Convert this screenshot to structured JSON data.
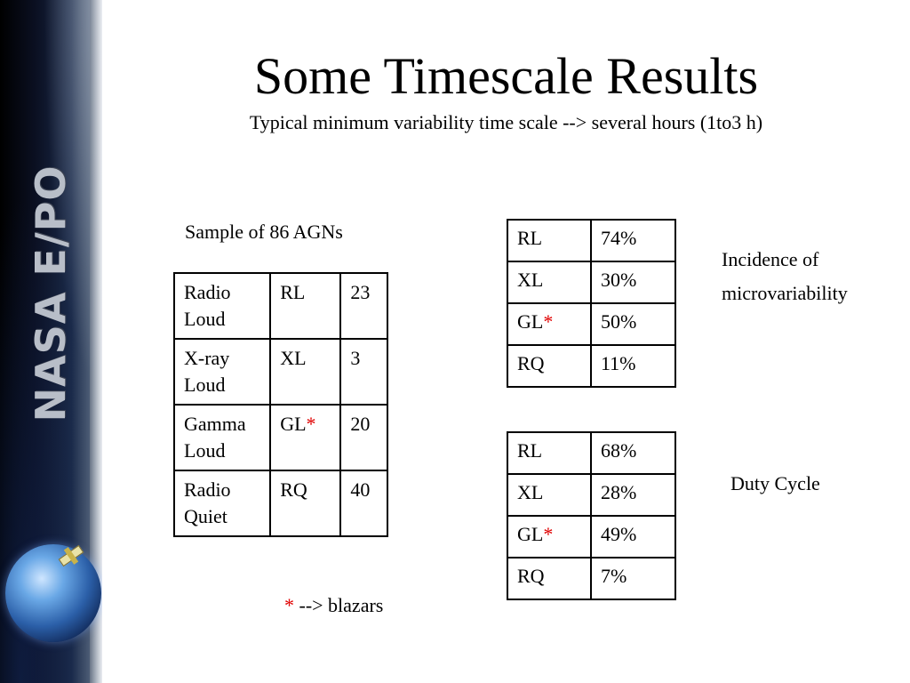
{
  "sidebar": {
    "logo_text": "NASA E/PO"
  },
  "title": "Some Timescale Results",
  "subtitle": "Typical minimum variability time scale --> several hours (1to3 h)",
  "sample_label": "Sample of 86 AGNs",
  "sample_table": {
    "rows": [
      {
        "class_name": "Radio Loud",
        "code": "RL",
        "marker": "",
        "count": "23"
      },
      {
        "class_name": "X-ray Loud",
        "code": "XL",
        "marker": "",
        "count": "3"
      },
      {
        "class_name": "Gamma Loud",
        "code": "GL",
        "marker": "*",
        "count": "20"
      },
      {
        "class_name": "Radio Quiet",
        "code": "RQ",
        "marker": "",
        "count": "40"
      }
    ]
  },
  "incidence": {
    "label_line1": "Incidence of",
    "label_line2": "microvariability",
    "rows": [
      {
        "code": "RL",
        "marker": "",
        "value": "74%"
      },
      {
        "code": "XL",
        "marker": "",
        "value": "30%"
      },
      {
        "code": "GL",
        "marker": "*",
        "value": "50%"
      },
      {
        "code": "RQ",
        "marker": "",
        "value": "11%"
      }
    ]
  },
  "duty_cycle": {
    "label": "Duty Cycle",
    "rows": [
      {
        "code": "RL",
        "marker": "",
        "value": "68%"
      },
      {
        "code": "XL",
        "marker": "",
        "value": "28%"
      },
      {
        "code": "GL",
        "marker": "*",
        "value": "49%"
      },
      {
        "code": "RQ",
        "marker": "",
        "value": "7%"
      }
    ]
  },
  "footnote": {
    "marker": "*",
    "text": " --> blazars"
  },
  "colors": {
    "marker": "#e00000",
    "text": "#000000"
  }
}
